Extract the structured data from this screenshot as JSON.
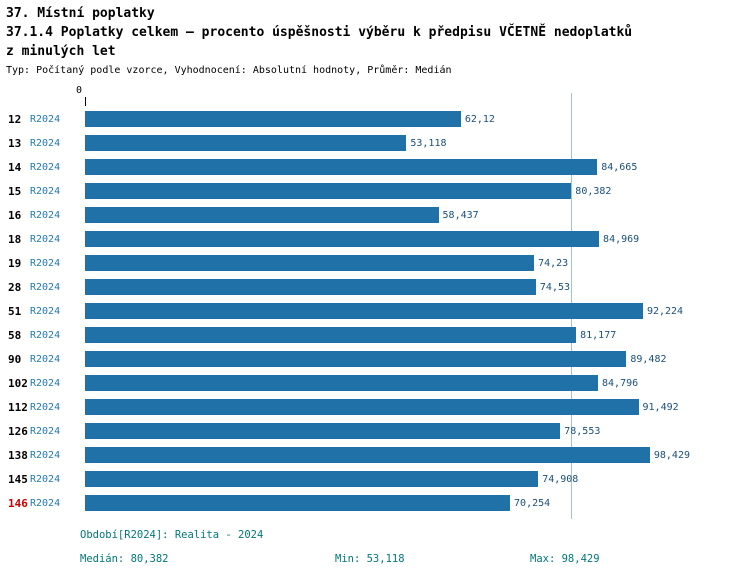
{
  "header": {
    "title_line1": "37. Místní poplatky",
    "title_line2": "37.1.4 Poplatky celkem – procento úspěšnosti výběru k předpisu VČETNĚ nedoplatků",
    "title_line3": "z minulých let",
    "subtitle": "Typ: Počítaný podle vzorce, Vyhodnocení: Absolutní hodnoty, Průměr: Medián"
  },
  "axis": {
    "zero_label": "0"
  },
  "footer": {
    "period": "Období[R2024]: Realita - 2024",
    "median": "Medián: 80,382",
    "min": "Min: 53,118",
    "max": "Max: 98,429"
  },
  "colors": {
    "bar": "#2171a9",
    "series_label": "#1f78b4",
    "value_label": "#1a4f7a",
    "footer_text": "#007878",
    "highlight_category": "#cc0000",
    "median_line": "#9dc3dd"
  },
  "chart_data": {
    "type": "bar",
    "orientation": "horizontal",
    "title": "37.1.4 Poplatky celkem – procento úspěšnosti výběru k předpisu VČETNĚ nedoplatků z minulých let",
    "series_label": "R2024",
    "categories": [
      "12",
      "13",
      "14",
      "15",
      "16",
      "18",
      "19",
      "28",
      "51",
      "58",
      "90",
      "102",
      "112",
      "126",
      "138",
      "145",
      "146"
    ],
    "values": [
      62.12,
      53.118,
      84.665,
      80.382,
      58.437,
      84.969,
      74.23,
      74.53,
      92.224,
      81.177,
      89.482,
      84.796,
      91.492,
      78.553,
      98.429,
      74.908,
      70.254
    ],
    "value_labels": [
      "62,12",
      "53,118",
      "84,665",
      "80,382",
      "58,437",
      "84,969",
      "74,23",
      "74,53",
      "92,224",
      "81,177",
      "89,482",
      "84,796",
      "91,492",
      "78,553",
      "98,429",
      "74,908",
      "70,254"
    ],
    "highlight_category": "146",
    "median_value": 80.382,
    "min_value": 53.118,
    "max_value": 98.429,
    "xlim": [
      0,
      100
    ],
    "legend_position": "none",
    "grid": false
  }
}
